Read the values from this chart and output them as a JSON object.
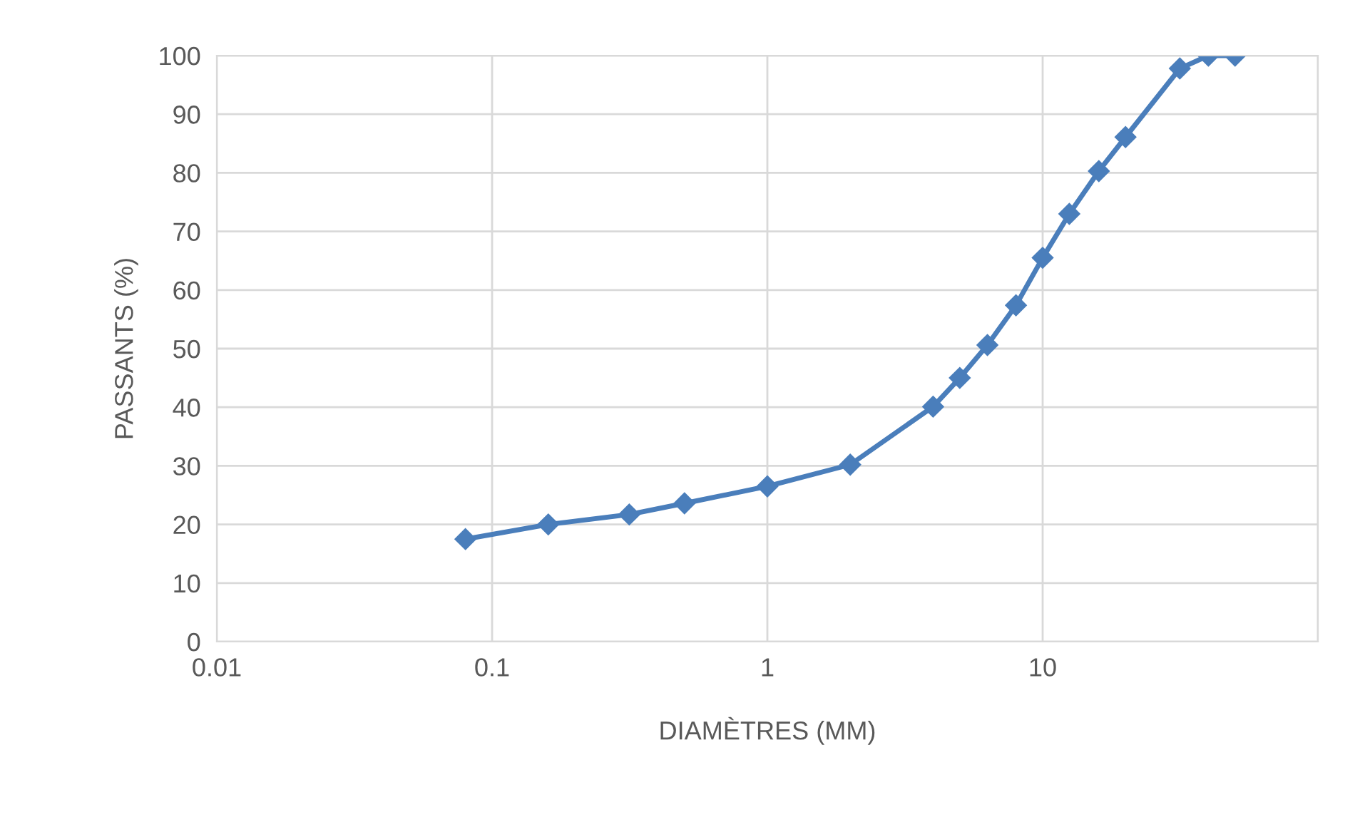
{
  "chart_data": {
    "type": "line",
    "xlabel": "DIAMÈTRES (MM)",
    "ylabel": "PASSANTS (%)",
    "x": [
      0.08,
      0.16,
      0.315,
      0.5,
      1,
      2,
      4,
      5,
      6.3,
      8,
      10,
      12.5,
      16,
      20,
      31.5,
      40,
      50
    ],
    "series": [
      {
        "color": "#4a7ebb",
        "values": [
          17.5,
          20,
          21.7,
          23.6,
          26.5,
          30.2,
          40.1,
          45,
          50.6,
          57.4,
          65.5,
          73,
          80.3,
          86.1,
          97.8,
          100,
          100
        ]
      }
    ],
    "log": "x",
    "xlim": [
      0.01,
      100
    ],
    "xticks": [
      0.01,
      0.1,
      1,
      10,
      {
        "value": 100,
        "label": null
      }
    ],
    "ylim": [
      0,
      100
    ],
    "yticks": [
      0,
      10,
      20,
      30,
      40,
      50,
      60,
      70,
      80,
      90,
      100
    ],
    "grid": true,
    "marker": "diamond",
    "line_style": "solid"
  }
}
